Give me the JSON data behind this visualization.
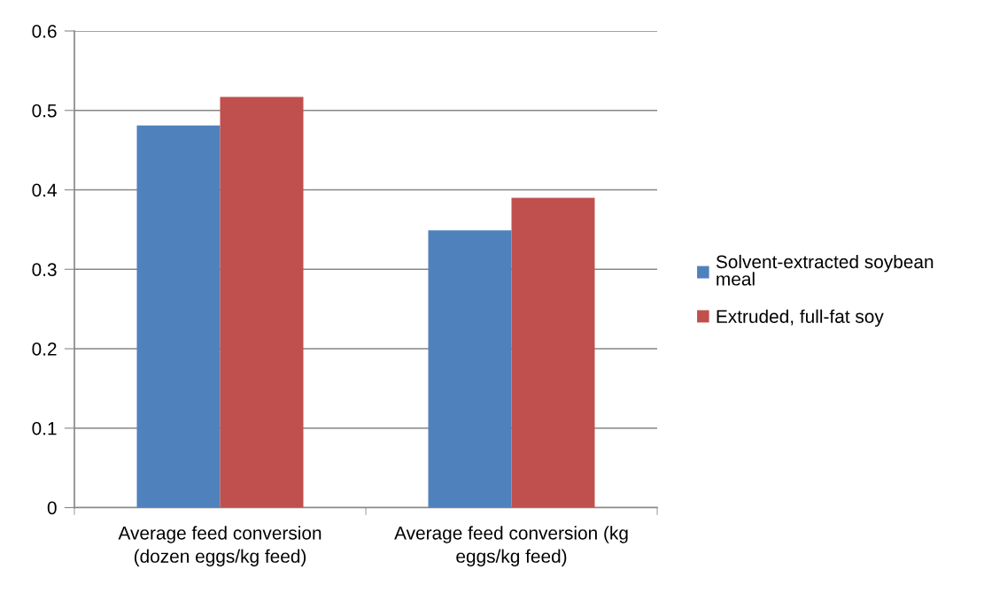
{
  "chart_data": {
    "type": "bar",
    "categories": [
      "Average feed conversion\n(dozen eggs/kg feed)",
      "Average feed conversion (kg\neggs/kg feed)"
    ],
    "series": [
      {
        "name": "Solvent-extracted soybean\nmeal",
        "color": "#4f81bd",
        "values": [
          0.481,
          0.349
        ]
      },
      {
        "name": "Extruded, full-fat soy",
        "color": "#c0504d",
        "values": [
          0.517,
          0.39
        ]
      }
    ],
    "ylim": [
      0,
      0.6
    ],
    "yticks": [
      0,
      0.1,
      0.2,
      0.3,
      0.4,
      0.5,
      0.6
    ],
    "grid": "y",
    "legend": "right"
  }
}
